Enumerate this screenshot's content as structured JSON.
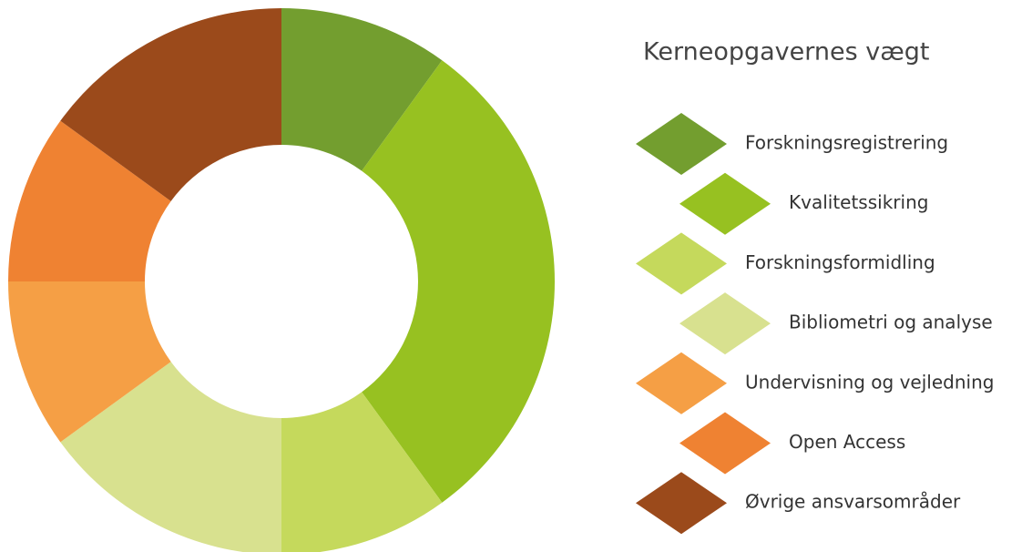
{
  "chart_data": {
    "type": "pie",
    "title": "Kerneopgavernes vægt",
    "categories": [
      "Forskningsregistrering",
      "Kvalitetssikring",
      "Forskningsformidling",
      "Bibliometri og analyse",
      "Undervisning og vejledning",
      "Open Access",
      "Øvrige ansvarsområder"
    ],
    "values": [
      10,
      30,
      10,
      15,
      10,
      10,
      15
    ],
    "colors": [
      "#739e2f",
      "#97c121",
      "#c5d95c",
      "#d8e18f",
      "#f59f45",
      "#ef8232",
      "#9b4a1b"
    ]
  }
}
